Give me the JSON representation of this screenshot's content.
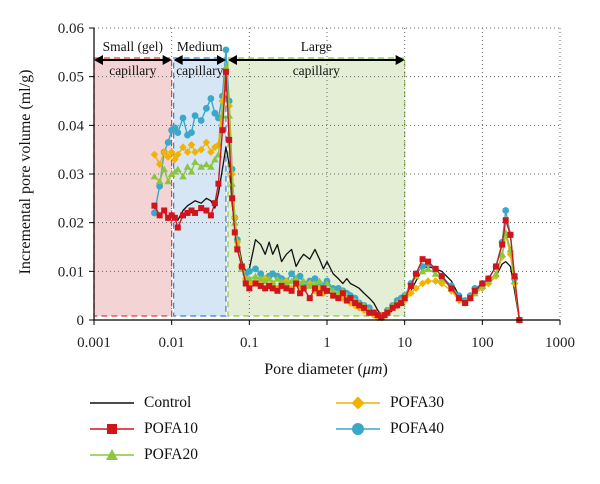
{
  "chart_data": {
    "type": "line",
    "xscale": "log",
    "xlabel_prefix": "Pore diameter (",
    "xlabel_unit": "μm",
    "xlabel_suffix": ")",
    "ylabel": "Incremental pore volume (ml/g)",
    "xlim": [
      0.001,
      1000
    ],
    "ylim": [
      0,
      0.06
    ],
    "xticks": [
      0.001,
      0.01,
      0.1,
      1,
      10,
      100,
      1000
    ],
    "xtick_labels": [
      "0.001",
      "0.01",
      "0.1",
      "1",
      "10",
      "100",
      "1000"
    ],
    "yticks": [
      0,
      0.01,
      0.02,
      0.03,
      0.04,
      0.05,
      0.06
    ],
    "ytick_labels": [
      "0",
      "0.01",
      "0.02",
      "0.03",
      "0.04",
      "0.05",
      "0.06"
    ],
    "grid": "dotted",
    "legend_position": "bottom",
    "regions": [
      {
        "name_line1": "Small (gel)",
        "name_line2": "capillary",
        "x_range": [
          0.001,
          0.01
        ],
        "fill": "#f3d3d3",
        "edge": "#e0403a"
      },
      {
        "name_line1": "Medium",
        "name_line2": "capillary",
        "x_range": [
          0.01,
          0.05
        ],
        "fill": "#d7e6f4",
        "edge": "#3a7bd5"
      },
      {
        "name_line1": "Large",
        "name_line2": "capillary",
        "x_range": [
          0.05,
          10
        ],
        "fill": "#e3eed5",
        "edge": "#8cc63f"
      }
    ],
    "series": [
      {
        "name": "Control",
        "color": "#111111",
        "marker": "none",
        "x": [
          0.006,
          0.007,
          0.008,
          0.009,
          0.01,
          0.011,
          0.012,
          0.014,
          0.016,
          0.018,
          0.02,
          0.024,
          0.028,
          0.032,
          0.036,
          0.04,
          0.045,
          0.05,
          0.055,
          0.06,
          0.065,
          0.07,
          0.08,
          0.09,
          0.1,
          0.12,
          0.14,
          0.16,
          0.18,
          0.2,
          0.23,
          0.26,
          0.3,
          0.35,
          0.4,
          0.45,
          0.5,
          0.6,
          0.7,
          0.8,
          0.9,
          1.0,
          1.2,
          1.4,
          1.6,
          1.8,
          2.0,
          2.3,
          2.6,
          3.0,
          3.5,
          4.0,
          4.5,
          5.0,
          5.5,
          6.0,
          7.0,
          8.0,
          9.0,
          10,
          12,
          14,
          17,
          20,
          25,
          30,
          40,
          50,
          60,
          70,
          80,
          100,
          120,
          150,
          180,
          200,
          230,
          260,
          300
        ],
        "y": [
          0.023,
          0.0215,
          0.0225,
          0.0205,
          0.022,
          0.0215,
          0.0205,
          0.0225,
          0.0235,
          0.024,
          0.0245,
          0.024,
          0.025,
          0.0245,
          0.023,
          0.026,
          0.031,
          0.0355,
          0.032,
          0.024,
          0.019,
          0.017,
          0.012,
          0.01,
          0.0105,
          0.0165,
          0.0155,
          0.0135,
          0.016,
          0.0135,
          0.0155,
          0.012,
          0.0135,
          0.0145,
          0.011,
          0.0125,
          0.0135,
          0.0125,
          0.0145,
          0.0125,
          0.0105,
          0.012,
          0.0095,
          0.0085,
          0.0075,
          0.0085,
          0.0075,
          0.007,
          0.0065,
          0.0055,
          0.0045,
          0.0035,
          0.002,
          0.001,
          0.0005,
          0.001,
          0.002,
          0.003,
          0.0035,
          0.0045,
          0.006,
          0.008,
          0.0105,
          0.011,
          0.0105,
          0.01,
          0.008,
          0.005,
          0.004,
          0.005,
          0.006,
          0.007,
          0.0075,
          0.009,
          0.0115,
          0.012,
          0.011,
          0.006,
          0.0
        ]
      },
      {
        "name": "POFA10",
        "color": "#d0161c",
        "marker": "square",
        "x": [
          0.006,
          0.007,
          0.008,
          0.009,
          0.01,
          0.011,
          0.012,
          0.014,
          0.016,
          0.018,
          0.02,
          0.024,
          0.028,
          0.032,
          0.036,
          0.04,
          0.045,
          0.05,
          0.055,
          0.06,
          0.065,
          0.07,
          0.08,
          0.09,
          0.1,
          0.12,
          0.14,
          0.16,
          0.18,
          0.2,
          0.23,
          0.26,
          0.3,
          0.35,
          0.4,
          0.45,
          0.5,
          0.6,
          0.7,
          0.8,
          0.9,
          1.0,
          1.2,
          1.4,
          1.6,
          1.8,
          2.0,
          2.3,
          2.6,
          3.0,
          3.5,
          4.0,
          4.5,
          5.0,
          5.5,
          6.0,
          7.0,
          8.0,
          9.0,
          10,
          12,
          14,
          17,
          20,
          25,
          30,
          40,
          50,
          60,
          70,
          80,
          100,
          120,
          150,
          180,
          200,
          230,
          260,
          300
        ],
        "y": [
          0.0235,
          0.0215,
          0.0225,
          0.021,
          0.0215,
          0.021,
          0.019,
          0.0215,
          0.022,
          0.0225,
          0.022,
          0.023,
          0.0225,
          0.0215,
          0.024,
          0.028,
          0.039,
          0.051,
          0.037,
          0.025,
          0.018,
          0.0145,
          0.011,
          0.0075,
          0.0065,
          0.0075,
          0.007,
          0.0065,
          0.007,
          0.0065,
          0.006,
          0.007,
          0.0065,
          0.006,
          0.0075,
          0.0055,
          0.0065,
          0.0045,
          0.0065,
          0.0055,
          0.0065,
          0.006,
          0.005,
          0.0045,
          0.0055,
          0.004,
          0.0045,
          0.0035,
          0.003,
          0.0025,
          0.0015,
          0.0015,
          0.001,
          0.0005,
          0.001,
          0.0015,
          0.0025,
          0.003,
          0.0035,
          0.0045,
          0.007,
          0.0095,
          0.0125,
          0.012,
          0.0105,
          0.009,
          0.0065,
          0.0045,
          0.0035,
          0.0045,
          0.006,
          0.0075,
          0.0085,
          0.011,
          0.0155,
          0.0205,
          0.0175,
          0.009,
          0.0
        ]
      },
      {
        "name": "POFA20",
        "color": "#8cc63f",
        "marker": "triangle",
        "x": [
          0.006,
          0.007,
          0.008,
          0.009,
          0.01,
          0.011,
          0.012,
          0.014,
          0.016,
          0.018,
          0.02,
          0.024,
          0.028,
          0.032,
          0.036,
          0.04,
          0.045,
          0.05,
          0.055,
          0.06,
          0.065,
          0.07,
          0.08,
          0.09,
          0.1,
          0.12,
          0.14,
          0.16,
          0.18,
          0.2,
          0.23,
          0.26,
          0.3,
          0.35,
          0.4,
          0.45,
          0.5,
          0.6,
          0.7,
          0.8,
          0.9,
          1.0,
          1.2,
          1.4,
          1.6,
          1.8,
          2.0,
          2.3,
          2.6,
          3.0,
          3.5,
          4.0,
          4.5,
          5.0,
          5.5,
          6.0,
          7.0,
          8.0,
          9.0,
          10,
          12,
          14,
          17,
          20,
          25,
          30,
          40,
          50,
          60,
          70,
          80,
          100,
          120,
          150,
          180,
          200,
          230,
          260,
          300
        ],
        "y": [
          0.0295,
          0.0285,
          0.031,
          0.0285,
          0.03,
          0.0305,
          0.031,
          0.0295,
          0.0315,
          0.0305,
          0.0325,
          0.0315,
          0.032,
          0.0315,
          0.033,
          0.034,
          0.042,
          0.052,
          0.042,
          0.028,
          0.02,
          0.0155,
          0.0105,
          0.0085,
          0.0085,
          0.009,
          0.0085,
          0.008,
          0.0085,
          0.0075,
          0.0085,
          0.008,
          0.0075,
          0.008,
          0.0085,
          0.0075,
          0.008,
          0.007,
          0.0075,
          0.008,
          0.0065,
          0.0075,
          0.006,
          0.0055,
          0.006,
          0.005,
          0.0045,
          0.004,
          0.0035,
          0.003,
          0.002,
          0.0015,
          0.001,
          0.0005,
          0.001,
          0.002,
          0.003,
          0.0035,
          0.004,
          0.005,
          0.007,
          0.009,
          0.01,
          0.0105,
          0.0095,
          0.0085,
          0.0065,
          0.0045,
          0.0035,
          0.0045,
          0.0055,
          0.007,
          0.008,
          0.0095,
          0.0135,
          0.018,
          0.0145,
          0.008,
          0.0
        ]
      },
      {
        "name": "POFA30",
        "color": "#f2b200",
        "marker": "diamond",
        "x": [
          0.006,
          0.007,
          0.008,
          0.009,
          0.01,
          0.011,
          0.012,
          0.014,
          0.016,
          0.018,
          0.02,
          0.024,
          0.028,
          0.032,
          0.036,
          0.04,
          0.045,
          0.05,
          0.055,
          0.06,
          0.065,
          0.07,
          0.08,
          0.09,
          0.1,
          0.12,
          0.14,
          0.16,
          0.18,
          0.2,
          0.23,
          0.26,
          0.3,
          0.35,
          0.4,
          0.45,
          0.5,
          0.6,
          0.7,
          0.8,
          0.9,
          1.0,
          1.2,
          1.4,
          1.6,
          1.8,
          2.0,
          2.3,
          2.6,
          3.0,
          3.5,
          4.0,
          4.5,
          5.0,
          5.5,
          6.0,
          7.0,
          8.0,
          9.0,
          10,
          12,
          14,
          17,
          20,
          25,
          30,
          40,
          50,
          60,
          70,
          80,
          100,
          120,
          150,
          180,
          200,
          230,
          260,
          300
        ],
        "y": [
          0.034,
          0.032,
          0.0345,
          0.0335,
          0.0345,
          0.033,
          0.034,
          0.0355,
          0.0345,
          0.036,
          0.0345,
          0.035,
          0.0365,
          0.0345,
          0.0355,
          0.036,
          0.045,
          0.051,
          0.044,
          0.03,
          0.021,
          0.016,
          0.011,
          0.0085,
          0.0075,
          0.008,
          0.0075,
          0.0085,
          0.007,
          0.0075,
          0.0065,
          0.007,
          0.008,
          0.0065,
          0.0075,
          0.007,
          0.0065,
          0.0075,
          0.006,
          0.0065,
          0.0055,
          0.006,
          0.0055,
          0.005,
          0.0045,
          0.0045,
          0.0035,
          0.003,
          0.0025,
          0.002,
          0.0015,
          0.001,
          0.0005,
          0.0005,
          0.001,
          0.0015,
          0.0025,
          0.003,
          0.0035,
          0.004,
          0.0055,
          0.0065,
          0.0075,
          0.008,
          0.008,
          0.0075,
          0.006,
          0.004,
          0.0035,
          0.0045,
          0.0055,
          0.0065,
          0.0075,
          0.009,
          0.013,
          0.0175,
          0.0135,
          0.0075,
          0.0
        ]
      },
      {
        "name": "POFA40",
        "color": "#3aa9c9",
        "marker": "circle",
        "x": [
          0.006,
          0.007,
          0.008,
          0.009,
          0.01,
          0.011,
          0.012,
          0.014,
          0.016,
          0.018,
          0.02,
          0.024,
          0.028,
          0.032,
          0.036,
          0.04,
          0.045,
          0.05,
          0.055,
          0.06,
          0.065,
          0.07,
          0.08,
          0.09,
          0.1,
          0.12,
          0.14,
          0.16,
          0.18,
          0.2,
          0.23,
          0.26,
          0.3,
          0.35,
          0.4,
          0.45,
          0.5,
          0.6,
          0.7,
          0.8,
          0.9,
          1.0,
          1.2,
          1.4,
          1.6,
          1.8,
          2.0,
          2.3,
          2.6,
          3.0,
          3.5,
          4.0,
          4.5,
          5.0,
          5.5,
          6.0,
          7.0,
          8.0,
          9.0,
          10,
          12,
          14,
          17,
          20,
          25,
          30,
          40,
          50,
          60,
          70,
          80,
          100,
          120,
          150,
          180,
          200,
          230,
          260,
          300
        ],
        "y": [
          0.022,
          0.0275,
          0.0345,
          0.0365,
          0.039,
          0.0395,
          0.0385,
          0.0415,
          0.038,
          0.0385,
          0.042,
          0.041,
          0.0435,
          0.0455,
          0.0425,
          0.0415,
          0.046,
          0.0555,
          0.045,
          0.031,
          0.021,
          0.0165,
          0.011,
          0.0095,
          0.01,
          0.0105,
          0.0095,
          0.0085,
          0.009,
          0.0095,
          0.009,
          0.0085,
          0.008,
          0.0095,
          0.0085,
          0.009,
          0.0075,
          0.008,
          0.0085,
          0.0075,
          0.007,
          0.008,
          0.0065,
          0.0065,
          0.006,
          0.0055,
          0.005,
          0.0045,
          0.0035,
          0.003,
          0.0025,
          0.0015,
          0.001,
          0.0005,
          0.001,
          0.002,
          0.003,
          0.004,
          0.0045,
          0.005,
          0.0075,
          0.0095,
          0.011,
          0.0115,
          0.0105,
          0.009,
          0.007,
          0.005,
          0.004,
          0.005,
          0.0065,
          0.0075,
          0.0085,
          0.011,
          0.016,
          0.0225,
          0.0175,
          0.0085,
          0.0
        ]
      }
    ]
  }
}
